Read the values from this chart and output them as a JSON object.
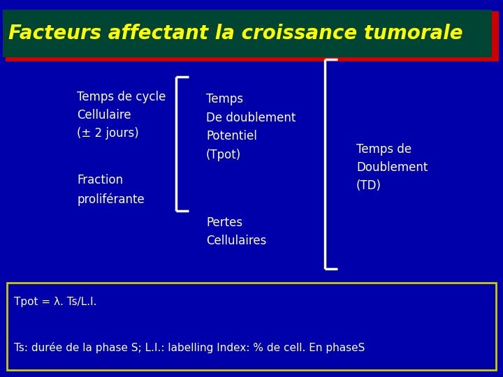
{
  "title": "Facteurs affectant la croissance tumorale",
  "title_color": "#FFFF00",
  "title_bg": "#004433",
  "title_border_outer": "#CC0000",
  "title_border_inner": "#336600",
  "bg_color": "#0000AA",
  "text_color": "#FFFFFF",
  "left_items": [
    "Temps de cycle\nCellulaire\n(± 2 jours)",
    "Fraction\nproliférante"
  ],
  "middle_items": [
    "Temps\nDe doublement\nPotentiel\n(Tpot)",
    "Pertes\nCellulaires"
  ],
  "right_item": "Temps de\nDoublement\n(TD)",
  "formula_line1": "Tpot = λ. Ts/L.I.",
  "formula_line2": "Ts: durée de la phase S; L.I.: labelling Index: % de cell. En phaseS",
  "formula_border": "#CCCC00",
  "bracket_color": "#FFFFFF",
  "font_size_title": 20,
  "font_size_text": 12,
  "font_size_formula": 11
}
